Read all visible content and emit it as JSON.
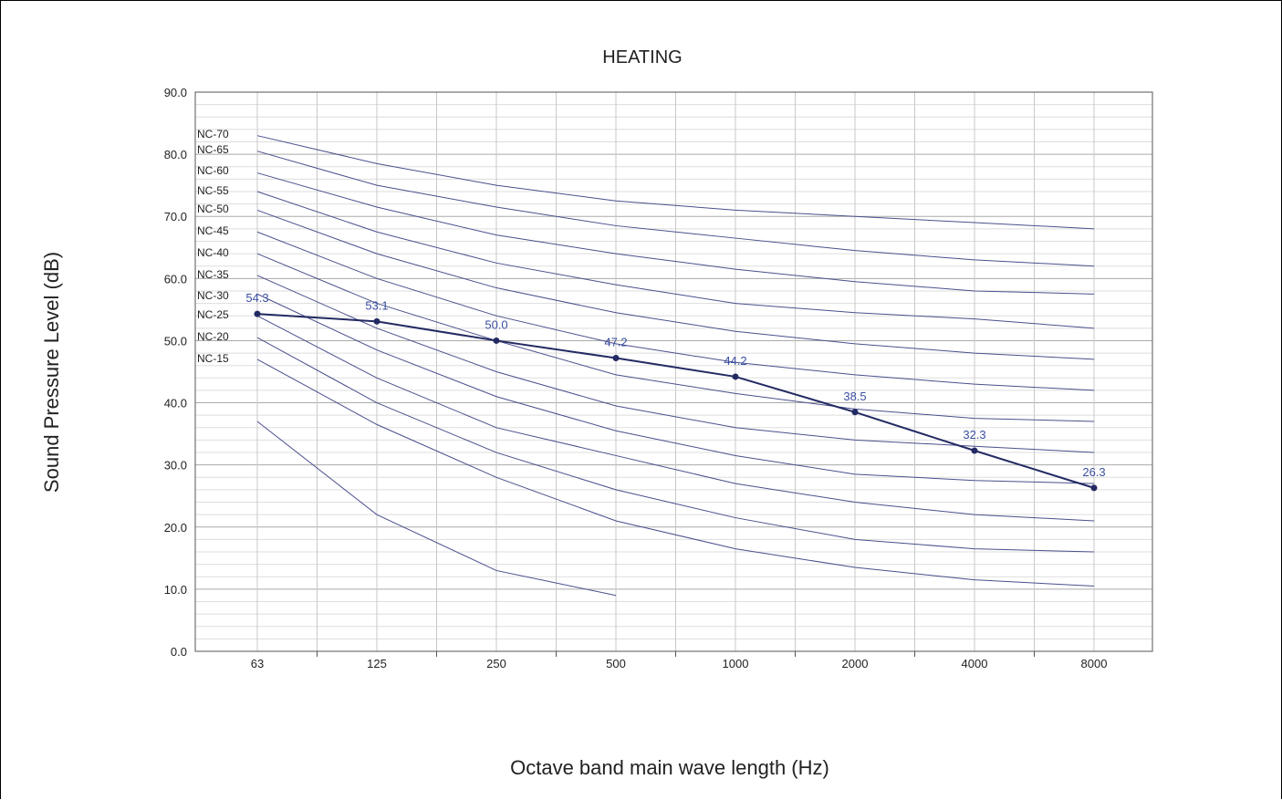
{
  "chart_data": {
    "type": "line",
    "title": "HEATING",
    "xlabel": "Octave band main wave length (Hz)",
    "ylabel": "Sound Pressure Level (dB)",
    "categories": [
      "63",
      "125",
      "250",
      "500",
      "1000",
      "2000",
      "4000",
      "8000"
    ],
    "ylim": [
      0,
      90
    ],
    "yticks": [
      "0.0",
      "10.0",
      "20.0",
      "30.0",
      "40.0",
      "50.0",
      "60.0",
      "70.0",
      "80.0",
      "90.0"
    ],
    "grid": true,
    "nc_curves": [
      {
        "name": "NC-70",
        "values": [
          83,
          78.5,
          75,
          72.5,
          71,
          70,
          69,
          68
        ]
      },
      {
        "name": "NC-65",
        "values": [
          80.5,
          75,
          71.5,
          68.5,
          66.5,
          64.5,
          63,
          62
        ]
      },
      {
        "name": "NC-60",
        "values": [
          77,
          71.5,
          67,
          64,
          61.5,
          59.5,
          58,
          57.5
        ]
      },
      {
        "name": "NC-55",
        "values": [
          74,
          67.5,
          62.5,
          59,
          56,
          54.5,
          53.5,
          52
        ]
      },
      {
        "name": "NC-50",
        "values": [
          71,
          64,
          58.5,
          54.5,
          51.5,
          49.5,
          48,
          47
        ]
      },
      {
        "name": "NC-45",
        "values": [
          67.5,
          60,
          54,
          49.5,
          46.5,
          44.5,
          43,
          42
        ]
      },
      {
        "name": "NC-40",
        "values": [
          64,
          56,
          50,
          44.5,
          41.5,
          39,
          37.5,
          37
        ]
      },
      {
        "name": "NC-35",
        "values": [
          60.5,
          52,
          45,
          39.5,
          36,
          34,
          33,
          32
        ]
      },
      {
        "name": "NC-30",
        "values": [
          57.5,
          48.5,
          41,
          35.5,
          31.5,
          28.5,
          27.5,
          27
        ]
      },
      {
        "name": "NC-25",
        "values": [
          54,
          44,
          36,
          31.5,
          27,
          24,
          22,
          21
        ]
      },
      {
        "name": "NC-20",
        "values": [
          50.5,
          40,
          32,
          26,
          21.5,
          18,
          16.5,
          16
        ]
      },
      {
        "name": "NC-15",
        "values": [
          47,
          36.5,
          28,
          21,
          16.5,
          13.5,
          11.5,
          10.5
        ]
      },
      {
        "name": "",
        "values": [
          37,
          22,
          13,
          9,
          null,
          null,
          null,
          null
        ]
      }
    ],
    "series": [
      {
        "values": [
          54.3,
          53.1,
          50.0,
          47.2,
          44.2,
          38.5,
          32.3,
          26.3
        ],
        "labels": [
          "54.3",
          "53.1",
          "50.0",
          "47.2",
          "44.2",
          "38.5",
          "32.3",
          "26.3"
        ]
      }
    ],
    "colors": {
      "nc_line": "#4a4f8c",
      "series_line": "#232a63",
      "data_label": "#3a4fa0",
      "grid": "#c8c8c8"
    }
  }
}
